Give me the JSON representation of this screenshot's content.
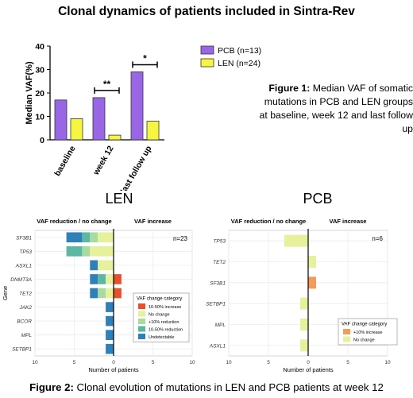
{
  "header": {
    "title": "Clonal dynamics of patients included in Sintra-Rev"
  },
  "figure1": {
    "caption_label": "Figure 1:",
    "caption_text": "Median VAF of somatic mutations in PCB and LEN groups at baseline, week 12 and last follow up",
    "chart_data": {
      "type": "bar",
      "categories": [
        "baseline",
        "week 12",
        "last follow up"
      ],
      "series": [
        {
          "name": "PCB (n=13)",
          "values": [
            17,
            18,
            29
          ],
          "color": "#9966e6"
        },
        {
          "name": "LEN (n=24)",
          "values": [
            9,
            2,
            8
          ],
          "color": "#f5f542"
        }
      ],
      "ylabel": "Median VAF(%)",
      "ylim": [
        0,
        40
      ],
      "yticks": [
        0,
        10,
        20,
        30,
        40
      ],
      "significance": [
        "",
        "**",
        "*"
      ],
      "legend_position": "right"
    }
  },
  "len_panel": {
    "title": "LEN",
    "chart_data": {
      "type": "bar",
      "orientation": "horizontal-stacked",
      "left_header": "VAF reduction / no change",
      "right_header": "VAF increase",
      "n_label": "n=23",
      "ylabel": "Gene",
      "xlabel": "Number of patients",
      "xticks": [
        10,
        5,
        0,
        5,
        10
      ],
      "xlim": [
        -10,
        10
      ],
      "categories": [
        "SF3B1",
        "TP53",
        "ASXL1",
        "DNMT3A",
        "TET2",
        "JAK2",
        "BCOR",
        "MPL",
        "SETBP1"
      ],
      "segments": [
        [
          [
            -6,
            -4,
            "Undetectable"
          ],
          [
            -4,
            -3,
            "10-50% reduction"
          ],
          [
            -3,
            -2,
            "+10% reduction"
          ],
          [
            -2,
            0,
            "No change"
          ]
        ],
        [
          [
            -6,
            -4,
            "10-50% reduction"
          ],
          [
            -4,
            -3,
            "+10% reduction"
          ],
          [
            -3,
            0,
            "No change"
          ]
        ],
        [
          [
            -3,
            -2,
            "Undetectable"
          ],
          [
            -2,
            0,
            "No change"
          ]
        ],
        [
          [
            -3,
            -2,
            "Undetectable"
          ],
          [
            -2,
            -1,
            "10-50% reduction"
          ],
          [
            -1,
            0,
            "No change"
          ],
          [
            0,
            1,
            "10-50% increase"
          ]
        ],
        [
          [
            -3,
            -2,
            "Undetectable"
          ],
          [
            -2,
            -1,
            "+10% reduction"
          ],
          [
            -1,
            0,
            "No change"
          ],
          [
            0,
            1,
            "10-50% increase"
          ]
        ],
        [
          [
            -1,
            0,
            "Undetectable"
          ]
        ],
        [
          [
            -1,
            0,
            "Undetectable"
          ]
        ],
        [
          [
            -1,
            0,
            "Undetectable"
          ]
        ],
        [
          [
            -1,
            0,
            "Undetectable"
          ]
        ]
      ],
      "legend_title": "VAF change category",
      "legend": [
        {
          "name": "10-50% increase",
          "color": "#e8502c"
        },
        {
          "name": "No change",
          "color": "#e7f09a"
        },
        {
          "name": "+10% reduction",
          "color": "#a8dba0"
        },
        {
          "name": "10-50% reduction",
          "color": "#5cb8a2"
        },
        {
          "name": "Undetectable",
          "color": "#2f7fb8"
        }
      ]
    }
  },
  "pcb_panel": {
    "title": "PCB",
    "chart_data": {
      "type": "bar",
      "orientation": "horizontal-stacked",
      "left_header": "VAF reduction / no change",
      "right_header": "VAF increase",
      "n_label": "n=6",
      "xlabel": "Number of patients",
      "xticks": [
        10,
        5,
        0,
        5,
        10
      ],
      "xlim": [
        -10,
        10
      ],
      "categories": [
        "TP53",
        "TET2",
        "SF3B1",
        "SETBP1",
        "MPL",
        "ASXL1"
      ],
      "segments": [
        [
          [
            -3,
            0,
            "No change"
          ]
        ],
        [
          [
            0,
            1,
            "No change"
          ]
        ],
        [
          [
            0,
            1,
            "+10% increase"
          ]
        ],
        [
          [
            -1,
            0,
            "No change"
          ]
        ],
        [
          [
            -1,
            0,
            "No change"
          ]
        ],
        [
          [
            -1,
            0,
            "No change"
          ]
        ]
      ],
      "legend_title": "VAF change category",
      "legend": [
        {
          "name": "+10% increase",
          "color": "#f49a5a"
        },
        {
          "name": "No change",
          "color": "#e7f09a"
        }
      ]
    }
  },
  "figure2": {
    "caption_label": "Figure 2:",
    "caption_text": "Clonal evolution of mutations in LEN and PCB patients at week 12"
  }
}
